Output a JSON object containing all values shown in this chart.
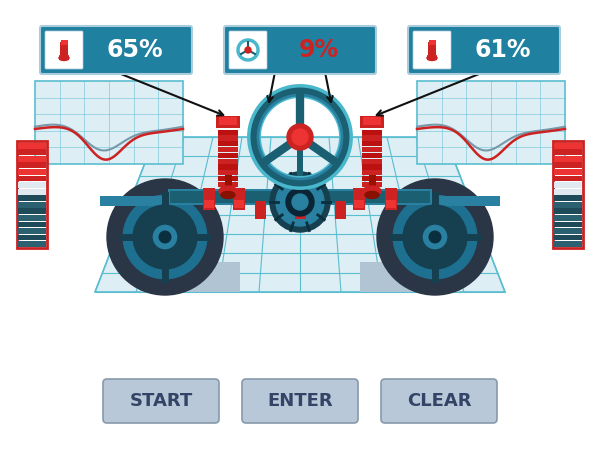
{
  "bg_color": "#ffffff",
  "teal_dark": "#1a5f72",
  "teal_mid": "#2980a0",
  "teal_light": "#4ab8cc",
  "teal_rim": "#1e7090",
  "red_main": "#cc2222",
  "red_bright": "#ee3333",
  "gray_light": "#c8d4de",
  "gray_mid": "#9aaabb",
  "grid_color": "#5bbdd0",
  "grid_bg": "#ddeef5",
  "panel_bg": "#2080a0",
  "chart_bg": "#ddeef5",
  "button_bg": "#b8c8d8",
  "button_text": "#334466",
  "left_pct": "65%",
  "center_pct": "9%",
  "right_pct": "61%",
  "buttons": [
    "START",
    "ENTER",
    "CLEAR"
  ],
  "arrow_color": "#222222",
  "gauge_red": "#cc2222",
  "gauge_teal": "#2a6070",
  "gauge_white": "#e0e8f0"
}
